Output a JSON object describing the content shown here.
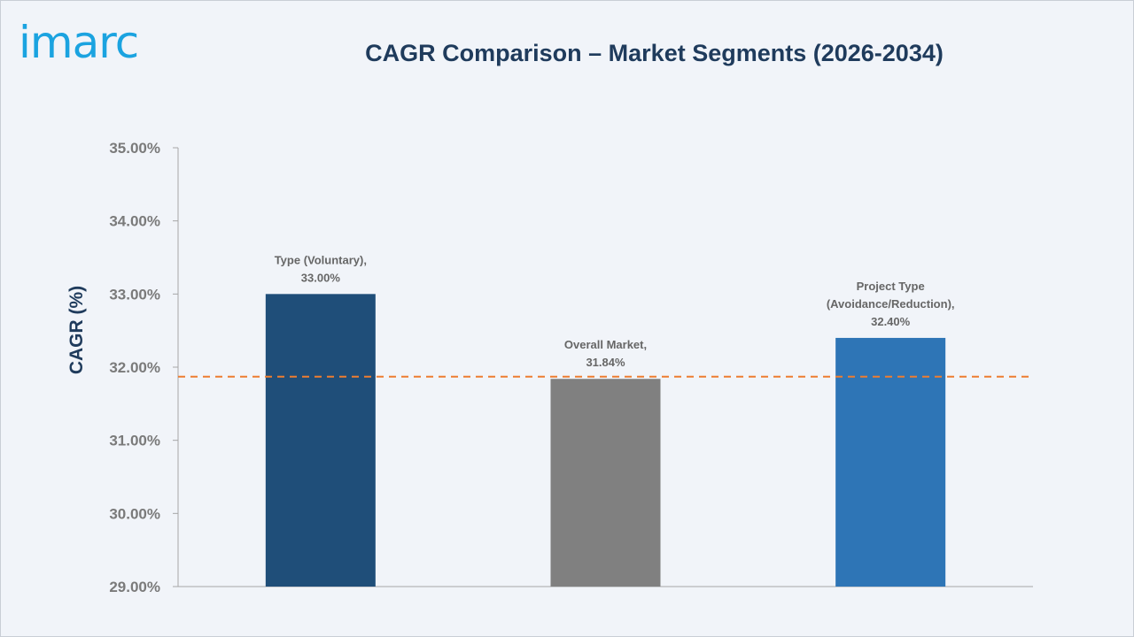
{
  "logo": {
    "text": "imarc"
  },
  "chart_data": {
    "type": "bar",
    "title": "CAGR Comparison – Market Segments (2026-2034)",
    "ylabel": "CAGR (%)",
    "xlabel": "",
    "ylim": [
      29,
      35
    ],
    "yticks": [
      "29.00%",
      "30.00%",
      "31.00%",
      "32.00%",
      "33.00%",
      "34.00%",
      "35.00%"
    ],
    "ytick_values": [
      29,
      30,
      31,
      32,
      33,
      34,
      35
    ],
    "grid": false,
    "legend": "none",
    "categories": [
      [
        "Type (Voluntary),"
      ],
      [
        "Overall Market,"
      ],
      [
        "Project Type",
        "(Avoidance/Reduction),"
      ]
    ],
    "values": [
      33.0,
      31.84,
      32.4
    ],
    "value_labels": [
      "33.00%",
      "31.84%",
      "32.40%"
    ],
    "colors": [
      "#1f4e79",
      "#808080",
      "#2e75b6"
    ],
    "reference_line": {
      "value": 31.87,
      "color": "#ed7d31",
      "style": "dashed"
    }
  }
}
